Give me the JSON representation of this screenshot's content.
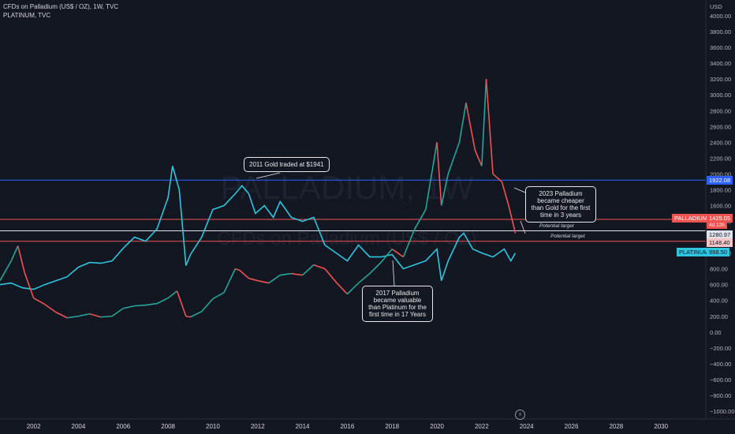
{
  "header": {
    "line1": "CFDs on Palladium (US$ / OZ), 1W, TVC",
    "line2": "PLATINUM, TVC"
  },
  "watermark": {
    "line1": "PALLADIUM, 1W",
    "line2": "CFDs on Palladium (US$ / OZ)"
  },
  "currency": "USD",
  "labels": {
    "gold_line": "1922.08",
    "palladium_name": "PALLADIUM",
    "palladium_price": "1425.05",
    "palladium_countdown": "4d 12h",
    "target_1": "1280.97",
    "target_2": "1148.40",
    "platinum_name": "PLATINUM",
    "platinum_price": "998.50"
  },
  "annotations": {
    "gold_2011": "2011 Gold traded at $1941",
    "palladium_2017": "2017 Palladium became valuable than Platinum for the first time in 17 Years",
    "palladium_2023": "2023 Palladium became cheaper than Gold for the first time in 3 years",
    "potential_target_1": "Potential target",
    "potential_target_2": "Potential target"
  },
  "colors": {
    "background": "#131722",
    "palladium_up": "#26a69a",
    "palladium_down": "#ef5350",
    "platinum": "#2ec5e0",
    "gold_line": "#2962ff",
    "palladium_line": "#ef5350",
    "target_line": "#e0e3eb"
  },
  "chart_data": {
    "type": "line",
    "x_unit": "year",
    "x_ticks": [
      2002,
      2004,
      2006,
      2008,
      2010,
      2012,
      2014,
      2016,
      2018,
      2020,
      2022,
      2024,
      2026,
      2028,
      2030
    ],
    "xlim": [
      2000.5,
      2032
    ],
    "y_ticks": [
      -1000,
      -800,
      -600,
      -400,
      -200,
      0,
      200,
      400,
      600,
      800,
      1000,
      1200,
      1400,
      1600,
      1800,
      2000,
      2200,
      2400,
      2600,
      2800,
      3000,
      3200,
      3400,
      3600,
      3800,
      4000
    ],
    "ylim": [
      -1100,
      4200
    ],
    "series": [
      {
        "name": "PALLADIUM",
        "x": [
          2000.5,
          2001.0,
          2001.3,
          2001.6,
          2002.0,
          2002.5,
          2003.0,
          2003.5,
          2004.0,
          2004.5,
          2005.0,
          2005.5,
          2006.0,
          2006.5,
          2007.0,
          2007.5,
          2008.0,
          2008.4,
          2008.8,
          2009.0,
          2009.5,
          2010.0,
          2010.5,
          2011.0,
          2011.2,
          2011.6,
          2012.0,
          2012.5,
          2013.0,
          2013.5,
          2014.0,
          2014.5,
          2015.0,
          2015.5,
          2016.0,
          2016.5,
          2017.0,
          2017.5,
          2018.0,
          2018.5,
          2019.0,
          2019.5,
          2020.0,
          2020.2,
          2020.5,
          2021.0,
          2021.3,
          2021.7,
          2022.0,
          2022.2,
          2022.5,
          2022.9,
          2023.2,
          2023.5
        ],
        "values": [
          650,
          900,
          1090,
          750,
          430,
          350,
          250,
          180,
          200,
          230,
          190,
          200,
          300,
          330,
          340,
          360,
          430,
          520,
          200,
          190,
          260,
          420,
          500,
          800,
          780,
          680,
          650,
          620,
          720,
          740,
          720,
          850,
          800,
          630,
          480,
          620,
          740,
          880,
          1050,
          950,
          1300,
          1550,
          2400,
          1600,
          2000,
          2400,
          2900,
          2300,
          2100,
          3200,
          2000,
          1900,
          1600,
          1250
        ]
      },
      {
        "name": "PLATINUM",
        "x": [
          2000.5,
          2001.0,
          2001.5,
          2002.0,
          2002.5,
          2003.0,
          2003.5,
          2004.0,
          2004.5,
          2005.0,
          2005.5,
          2006.0,
          2006.5,
          2007.0,
          2007.5,
          2008.0,
          2008.2,
          2008.5,
          2008.8,
          2009.0,
          2009.5,
          2010.0,
          2010.5,
          2011.0,
          2011.3,
          2011.6,
          2011.9,
          2012.3,
          2012.7,
          2013.0,
          2013.5,
          2014.0,
          2014.5,
          2015.0,
          2015.5,
          2016.0,
          2016.5,
          2017.0,
          2017.5,
          2018.0,
          2018.5,
          2019.0,
          2019.5,
          2020.0,
          2020.2,
          2020.5,
          2021.0,
          2021.2,
          2021.6,
          2022.0,
          2022.5,
          2023.0,
          2023.3,
          2023.5
        ],
        "values": [
          600,
          620,
          560,
          540,
          600,
          650,
          700,
          820,
          880,
          870,
          900,
          1060,
          1200,
          1150,
          1300,
          1700,
          2100,
          1800,
          840,
          980,
          1200,
          1550,
          1600,
          1750,
          1850,
          1750,
          1500,
          1600,
          1450,
          1650,
          1450,
          1400,
          1450,
          1100,
          1000,
          900,
          1100,
          950,
          950,
          980,
          800,
          850,
          900,
          1050,
          650,
          900,
          1200,
          1250,
          1050,
          1000,
          950,
          1050,
          900,
          1000
        ]
      }
    ],
    "horizontal_lines": [
      {
        "value": 1922.08,
        "label": "1922.08"
      },
      {
        "value": 1425.05,
        "label": "1425.05"
      },
      {
        "value": 1280.97,
        "label": "1280.97"
      },
      {
        "value": 1148.4,
        "label": "1148.40"
      }
    ],
    "grid": false,
    "legend": "none"
  }
}
